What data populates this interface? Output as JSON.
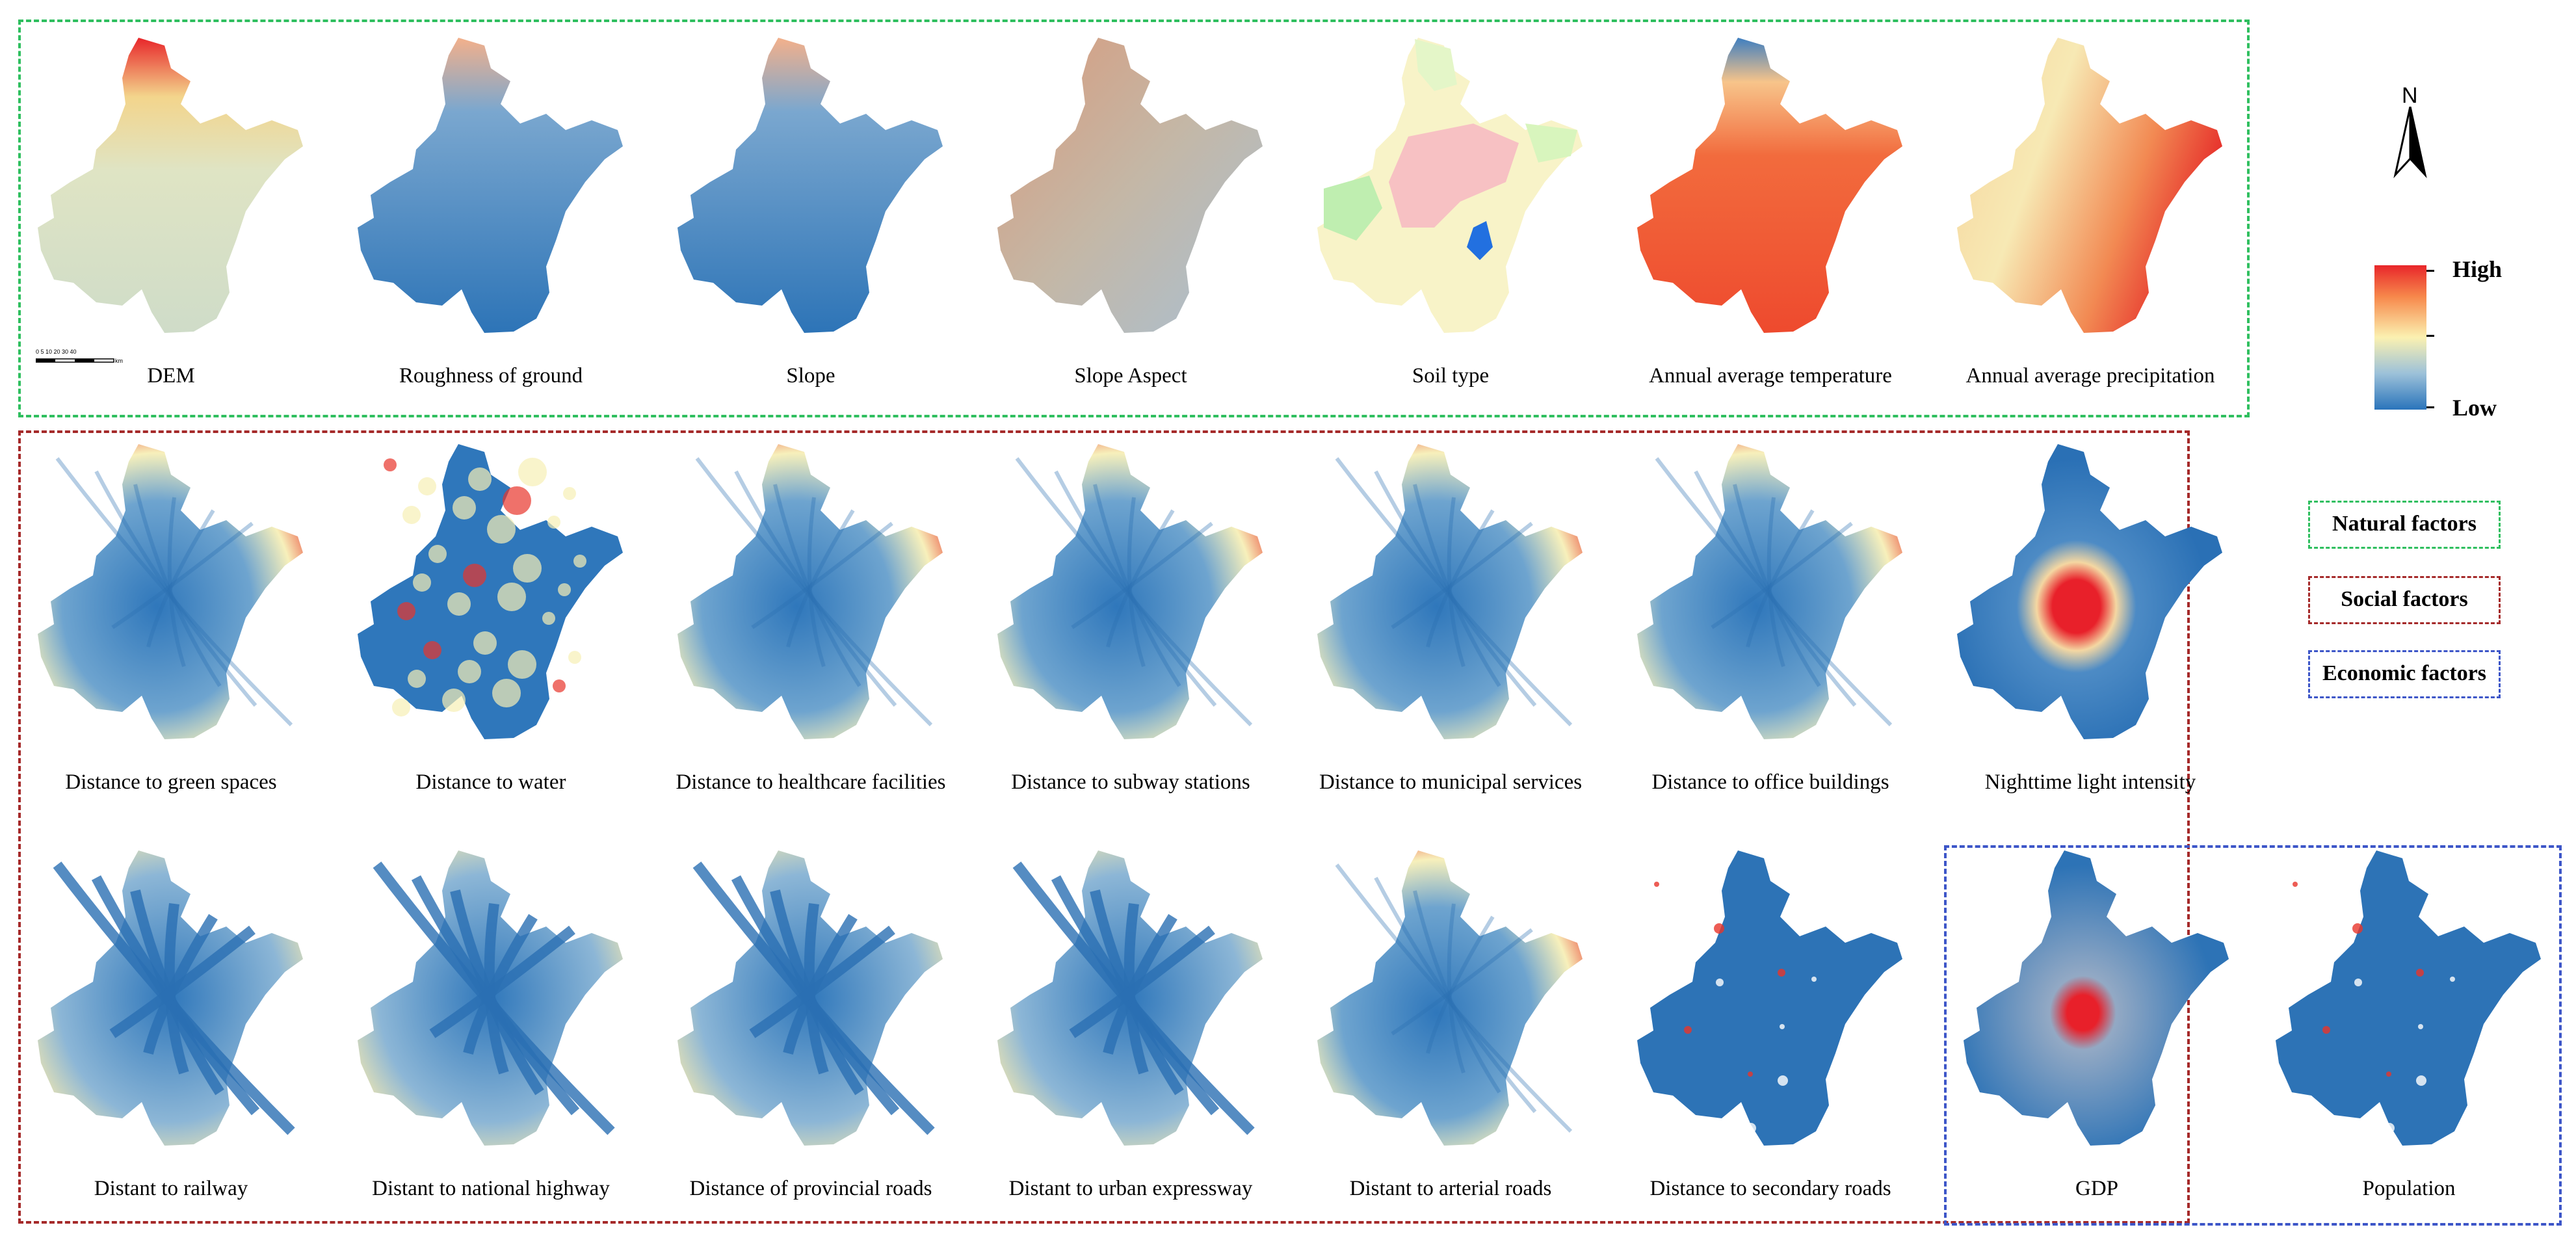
{
  "legend": {
    "high_label": "High",
    "low_label": "Low",
    "north_label": "N",
    "factor_groups": [
      {
        "label": "Natural factors",
        "color": "#2fbf5f"
      },
      {
        "label": "Social factors",
        "color": "#a52a2a"
      },
      {
        "label": "Economic factors",
        "color": "#3d56c8"
      }
    ]
  },
  "scale_bar": {
    "ticks": "0 5 10 20 30 40",
    "unit": "km"
  },
  "panels": [
    {
      "caption": "DEM",
      "style": "dem"
    },
    {
      "caption": "Roughness of ground",
      "style": "rough"
    },
    {
      "caption": "Slope",
      "style": "rough"
    },
    {
      "caption": "Slope Aspect",
      "style": "aspect"
    },
    {
      "caption": "Soil type",
      "style": "soil"
    },
    {
      "caption": "Annual average temperature",
      "style": "temp"
    },
    {
      "caption": "Annual average precipitation",
      "style": "precip"
    },
    {
      "caption": "Distance to green spaces",
      "style": "dist"
    },
    {
      "caption": "Distance to water",
      "style": "water"
    },
    {
      "caption": "Distance to healthcare facilities",
      "style": "dist"
    },
    {
      "caption": "Distance to subway stations",
      "style": "dist"
    },
    {
      "caption": "Distance to municipal services",
      "style": "dist"
    },
    {
      "caption": "Distance to office buildings",
      "style": "dist"
    },
    {
      "caption": "Nighttime light intensity",
      "style": "night"
    },
    {
      "caption": "Distant to railway",
      "style": "road"
    },
    {
      "caption": "Distant to national highway",
      "style": "road"
    },
    {
      "caption": "Distance of provincial roads",
      "style": "road"
    },
    {
      "caption": "Distant to urban expressway",
      "style": "road"
    },
    {
      "caption": "Distant to arterial roads",
      "style": "dist"
    },
    {
      "caption": "Distance to secondary roads",
      "style": "blue"
    },
    {
      "caption": "GDP",
      "style": "gdp"
    },
    {
      "caption": "Population",
      "style": "blue"
    }
  ]
}
